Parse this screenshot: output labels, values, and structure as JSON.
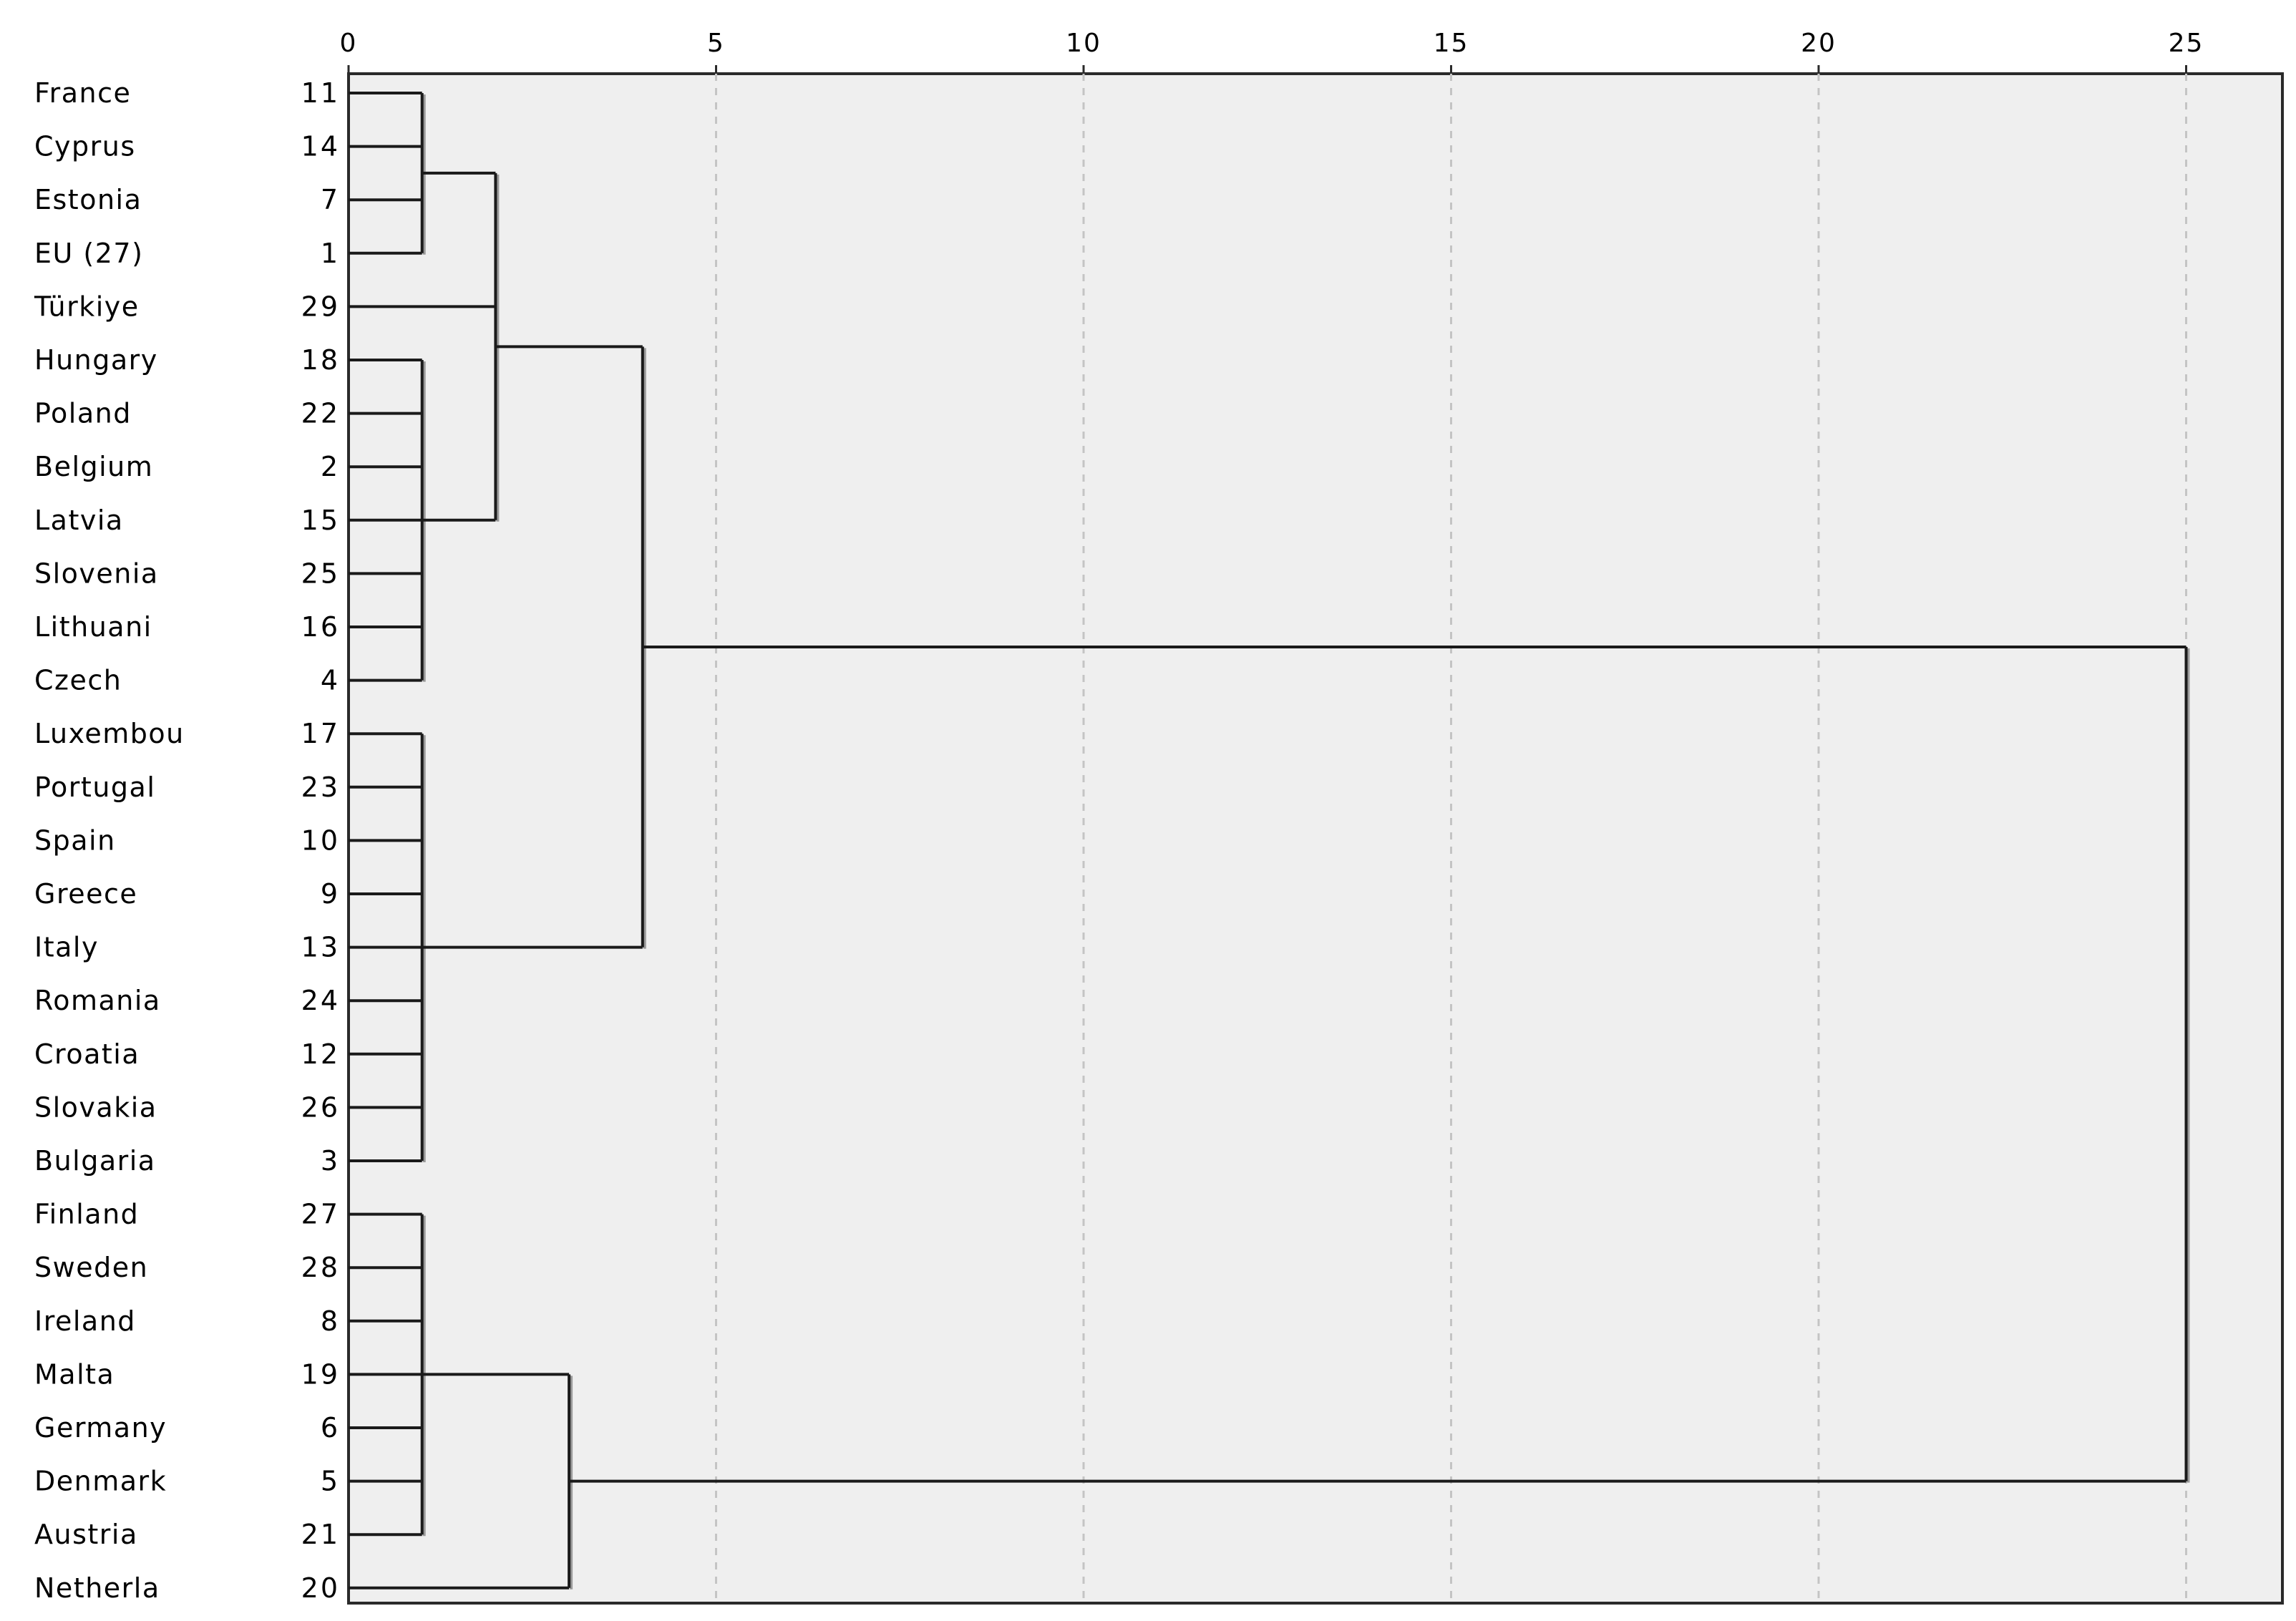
{
  "chart_data": {
    "type": "dendrogram",
    "title": "",
    "xlabel": "",
    "ylabel": "",
    "x_axis_position": "top",
    "xlim": [
      0,
      26.3
    ],
    "xticks": [
      0,
      5,
      10,
      15,
      20,
      25
    ],
    "grid": true,
    "leaves": [
      {
        "label": "France",
        "id": "11"
      },
      {
        "label": "Cyprus",
        "id": "14"
      },
      {
        "label": "Estonia",
        "id": "7"
      },
      {
        "label": "EU (27)",
        "id": "1"
      },
      {
        "label": "Türkiye",
        "id": "29"
      },
      {
        "label": "Hungary",
        "id": "18"
      },
      {
        "label": "Poland",
        "id": "22"
      },
      {
        "label": "Belgium",
        "id": "2"
      },
      {
        "label": "Latvia",
        "id": "15"
      },
      {
        "label": "Slovenia",
        "id": "25"
      },
      {
        "label": "Lithuani",
        "id": "16"
      },
      {
        "label": "Czech",
        "id": "4"
      },
      {
        "label": "Luxembou",
        "id": "17"
      },
      {
        "label": "Portugal",
        "id": "23"
      },
      {
        "label": "Spain",
        "id": "10"
      },
      {
        "label": "Greece",
        "id": "9"
      },
      {
        "label": "Italy",
        "id": "13"
      },
      {
        "label": "Romania",
        "id": "24"
      },
      {
        "label": "Croatia",
        "id": "12"
      },
      {
        "label": "Slovakia",
        "id": "26"
      },
      {
        "label": "Bulgaria",
        "id": "3"
      },
      {
        "label": "Finland",
        "id": "27"
      },
      {
        "label": "Sweden",
        "id": "28"
      },
      {
        "label": "Ireland",
        "id": "8"
      },
      {
        "label": "Malta",
        "id": "19"
      },
      {
        "label": "Germany",
        "id": "6"
      },
      {
        "label": "Denmark",
        "id": "5"
      },
      {
        "label": "Austria",
        "id": "21"
      },
      {
        "label": "Netherla",
        "id": "20"
      }
    ],
    "merges": [
      {
        "children": [
          [
            0,
            3
          ]
        ],
        "height": 1.0
      },
      {
        "children": [
          [
            5,
            11
          ]
        ],
        "height": 1.0
      },
      {
        "children": [
          [
            12,
            20
          ]
        ],
        "height": 1.0
      },
      {
        "children": [
          [
            21,
            27
          ]
        ],
        "height": 1.0
      },
      {
        "children": [
          [
            0,
            3
          ],
          [
            4,
            4
          ],
          [
            5,
            11
          ]
        ],
        "height": 2.0
      },
      {
        "children": [
          [
            21,
            27
          ],
          [
            28,
            28
          ]
        ],
        "height": 3.0
      },
      {
        "children": [
          [
            0,
            11
          ],
          [
            12,
            20
          ]
        ],
        "height": 4.0
      },
      {
        "children": [
          [
            0,
            20
          ],
          [
            21,
            28
          ]
        ],
        "height": 25.0
      }
    ]
  }
}
